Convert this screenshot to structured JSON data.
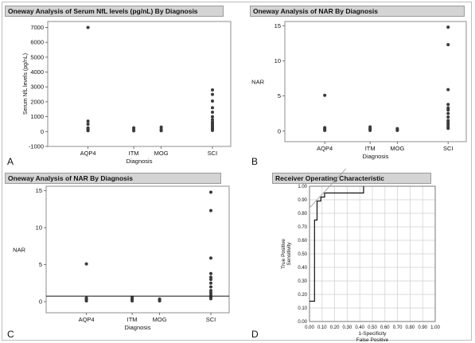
{
  "panels": [
    {
      "letter": "A",
      "title": "Oneway Analysis of Serum NfL levels (pg/nL) By Diagnosis",
      "chart_data": {
        "type": "scatter",
        "title": "Oneway Analysis of Serum NfL levels (pg/nL) By Diagnosis",
        "xlabel": "Diagnosis",
        "ylabel": "Serum NfL levels (pg/nL)",
        "categories": [
          "AQP4",
          "ITM",
          "MOG",
          "SCI"
        ],
        "category_positions": [
          0.22,
          0.47,
          0.62,
          0.9
        ],
        "ylim": [
          -1000,
          7400
        ],
        "yticks": [
          -1000,
          0,
          1000,
          2000,
          3000,
          4000,
          5000,
          6000,
          7000
        ],
        "points": {
          "AQP4": [
            7000,
            700,
            500,
            250,
            180,
            120,
            60
          ],
          "ITM": [
            250,
            150,
            50
          ],
          "MOG": [
            300,
            150,
            60
          ],
          "SCI": [
            2800,
            2500,
            2050,
            1600,
            1300,
            1000,
            800,
            650,
            550,
            450,
            350,
            280,
            200,
            130,
            80
          ]
        },
        "reference_line": null
      }
    },
    {
      "letter": "B",
      "title": "Oneway Analysis of NAR By Diagnosis",
      "chart_data": {
        "type": "scatter",
        "title": "Oneway Analysis of NAR By Diagnosis",
        "xlabel": "Diagnosis",
        "ylabel": "NAR",
        "categories": [
          "AQP4",
          "ITM",
          "MOG",
          "SCI"
        ],
        "category_positions": [
          0.22,
          0.47,
          0.62,
          0.9
        ],
        "ylim": [
          -1.5,
          15.6
        ],
        "yticks": [
          0,
          5,
          10,
          15
        ],
        "points": {
          "AQP4": [
            5.1,
            0.5,
            0.35,
            0.2,
            0.1
          ],
          "ITM": [
            0.6,
            0.4,
            0.25,
            0.1
          ],
          "MOG": [
            0.35,
            0.2,
            0.1
          ],
          "SCI": [
            14.8,
            12.3,
            5.9,
            3.8,
            3.3,
            3.0,
            2.5,
            2.0,
            1.5,
            1.2,
            0.9,
            0.6,
            0.4
          ]
        },
        "reference_line": null
      }
    },
    {
      "letter": "C",
      "title": "Oneway Analysis of NAR By Diagnosis",
      "chart_data": {
        "type": "scatter",
        "title": "Oneway Analysis of NAR By Diagnosis",
        "xlabel": "Diagnosis",
        "ylabel": "NAR",
        "categories": [
          "AQP4",
          "ITM",
          "MOG",
          "SCI"
        ],
        "category_positions": [
          0.22,
          0.47,
          0.62,
          0.9
        ],
        "ylim": [
          -1.5,
          15.6
        ],
        "yticks": [
          0,
          5,
          10,
          15
        ],
        "points": {
          "AQP4": [
            5.1,
            0.5,
            0.35,
            0.2,
            0.1
          ],
          "ITM": [
            0.6,
            0.4,
            0.25,
            0.1
          ],
          "MOG": [
            0.35,
            0.2,
            0.1
          ],
          "SCI": [
            14.8,
            12.3,
            5.9,
            3.8,
            3.3,
            3.0,
            2.5,
            2.0,
            1.5,
            1.2,
            0.9,
            0.6,
            0.4
          ]
        },
        "reference_line": 0.75
      }
    },
    {
      "letter": "D",
      "title": "Receiver Operating Characteristic",
      "chart_data": {
        "type": "line",
        "title": "Receiver Operating Characteristic",
        "xlabel_lines": [
          "1-Specificity",
          "False Positive"
        ],
        "ylabel_lines": [
          "True Positive",
          "Sensitivity"
        ],
        "xlim": [
          0,
          1
        ],
        "ylim": [
          0,
          1
        ],
        "ticks": [
          "0.00",
          "0.10",
          "0.20",
          "0.30",
          "0.40",
          "0.50",
          "0.60",
          "0.70",
          "0.80",
          "0.90",
          "1.00"
        ],
        "grid": true,
        "roc_curve": {
          "x": [
            0,
            0.04,
            0.04,
            0.06,
            0.06,
            0.09,
            0.09,
            0.12,
            0.12,
            0.43,
            0.43
          ],
          "y": [
            0.15,
            0.15,
            0.75,
            0.75,
            0.89,
            0.89,
            0.92,
            0.92,
            0.95,
            0.95,
            1.0
          ]
        },
        "tangent_line": {
          "x": [
            0,
            0.3
          ],
          "y": [
            0.84,
            1.14
          ]
        }
      }
    }
  ],
  "colors": {
    "point": "#3a3a3a",
    "line": "#111111",
    "grid": "#cfcfcf",
    "tangent": "#999999",
    "title_bg": "#d4d4d4"
  }
}
